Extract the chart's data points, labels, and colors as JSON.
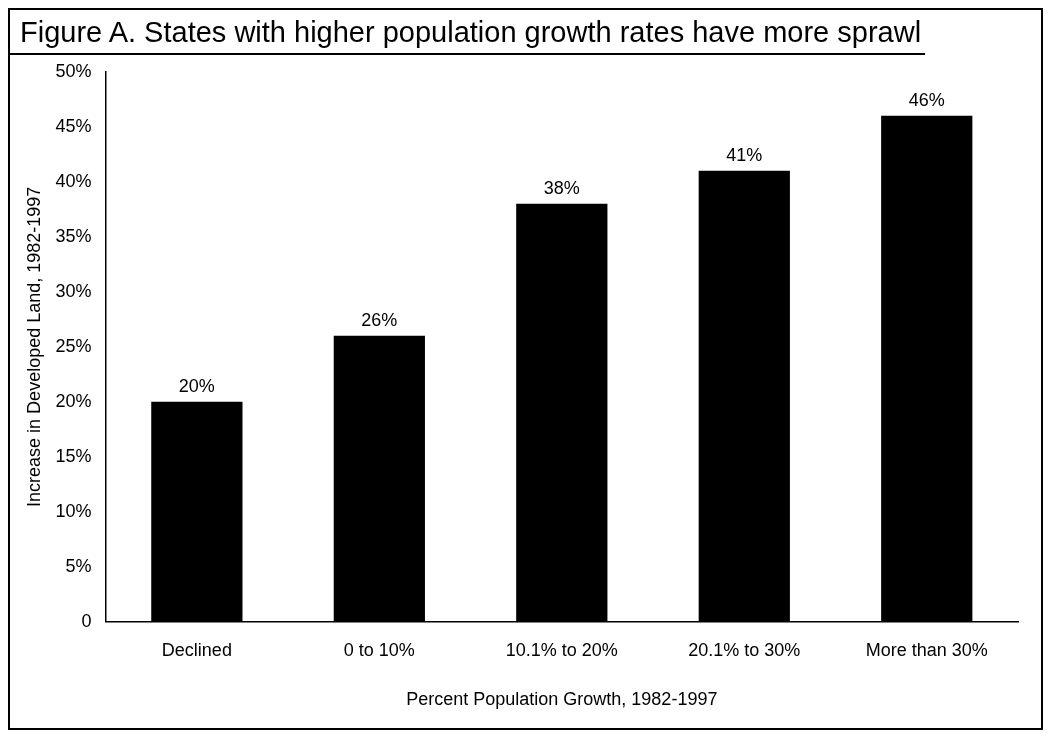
{
  "chart_data": {
    "type": "bar",
    "title": "Figure A. States with higher population growth rates have more sprawl",
    "xlabel": "Percent Population Growth, 1982-1997",
    "ylabel": "Increase in Developed Land, 1982-1997",
    "categories": [
      "Declined",
      "0 to 10%",
      "10.1% to 20%",
      "20.1% to 30%",
      "More than 30%"
    ],
    "values": [
      20,
      26,
      38,
      41,
      46
    ],
    "value_labels": [
      "20%",
      "26%",
      "38%",
      "41%",
      "46%"
    ],
    "color": "#000000",
    "ylim": [
      0,
      50
    ],
    "yticks": [
      0,
      {
        "value": 5,
        "label": "5%"
      },
      {
        "value": 10,
        "label": "10%"
      },
      {
        "value": 15,
        "label": "15%"
      },
      {
        "value": 20,
        "label": "20%"
      },
      {
        "value": 25,
        "label": "25%"
      },
      {
        "value": 30,
        "label": "30%"
      },
      {
        "value": 35,
        "label": "35%"
      },
      {
        "value": 40,
        "label": "40%"
      },
      {
        "value": 45,
        "label": "45%"
      },
      {
        "value": 50,
        "label": "50%"
      }
    ],
    "grid": false,
    "legend": false
  }
}
